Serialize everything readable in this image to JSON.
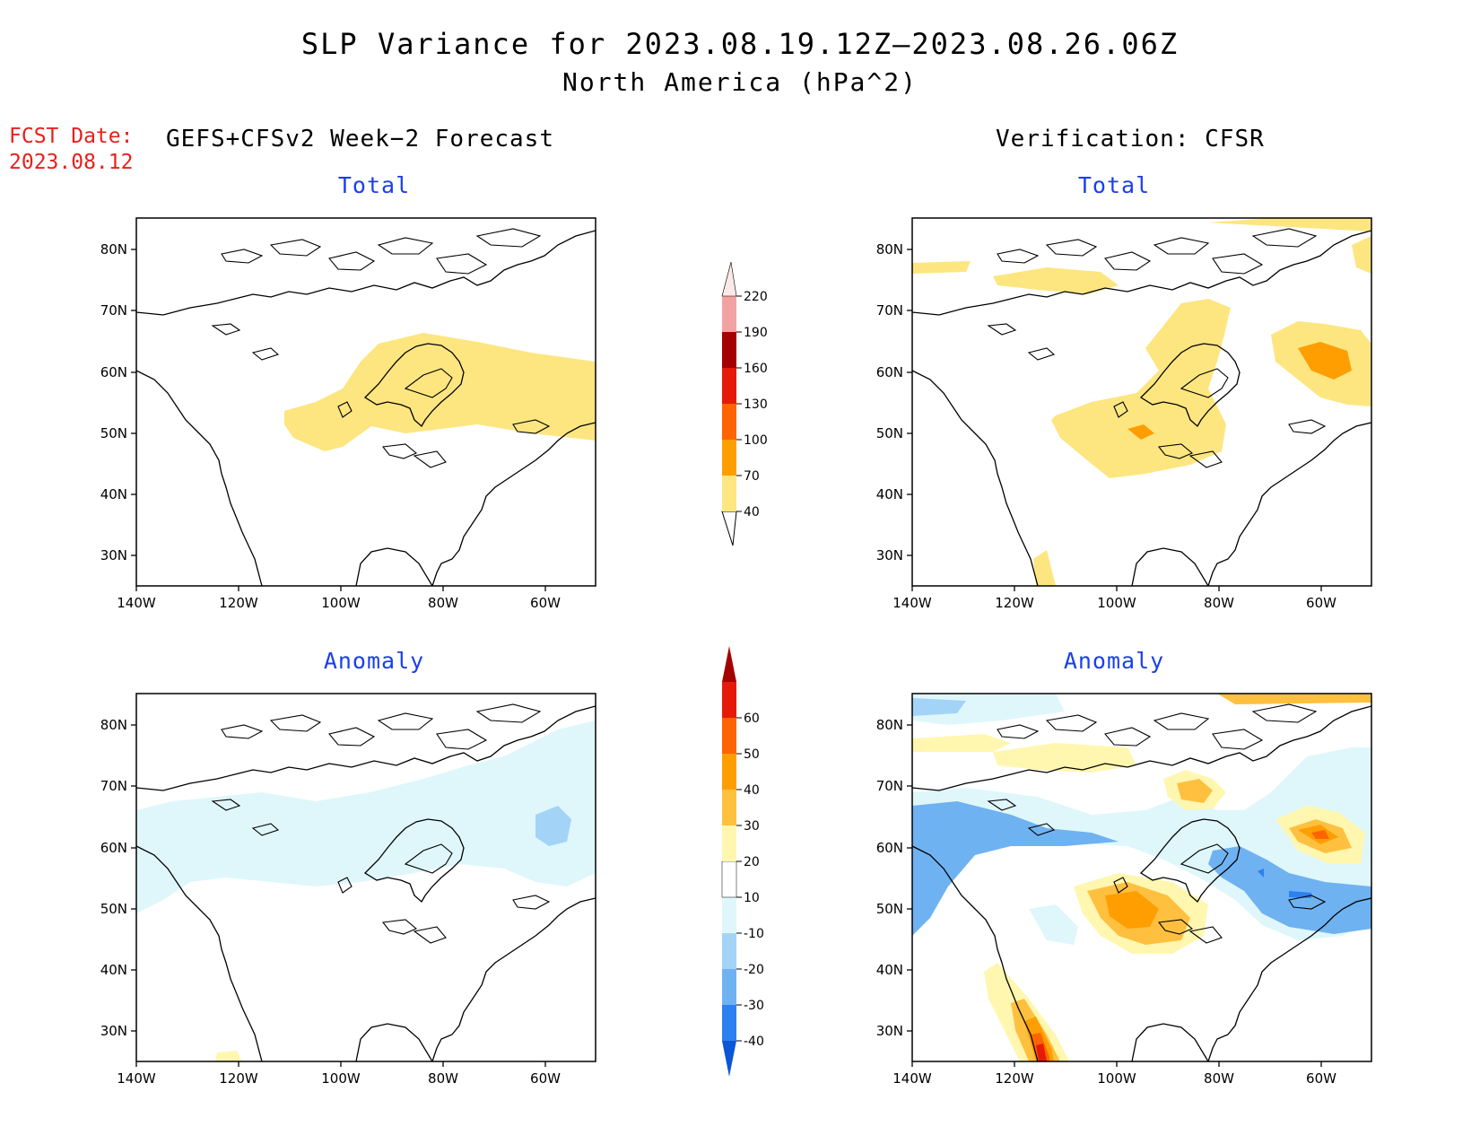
{
  "title": {
    "line1": "SLP Variance for 2023.08.19.12Z–2023.08.26.06Z",
    "line2": "North America (hPa^2)"
  },
  "fcst": {
    "label": "FCST Date:",
    "date": "2023.08.12"
  },
  "left_header": "GEFS+CFSv2 Week−2 Forecast",
  "right_header": "Verification: CFSR",
  "panels": {
    "fc_total": "Total",
    "ver_total": "Total",
    "fc_anom": "Anomaly",
    "ver_anom": "Anomaly"
  },
  "axes": {
    "lat_labels": [
      "80N",
      "70N",
      "60N",
      "50N",
      "40N",
      "30N"
    ],
    "lon_labels": [
      "140W",
      "120W",
      "100W",
      "80W",
      "60W"
    ]
  },
  "colorbars": {
    "total": {
      "levels": [
        "40",
        "70",
        "100",
        "130",
        "160",
        "190",
        "220"
      ],
      "colors": [
        "#fde680",
        "#ff9e00",
        "#ff6400",
        "#e61a0a",
        "#a50000",
        "#f2a2a2",
        "#fde8e8"
      ]
    },
    "anomaly": {
      "levels": [
        "-40",
        "-30",
        "-20",
        "-10",
        "10",
        "20",
        "30",
        "40",
        "50",
        "60"
      ],
      "colors": [
        "#0a56d8",
        "#2c80f0",
        "#6fb2f2",
        "#a3d4f7",
        "#dff7fb",
        "#ffffff",
        "#fff7b0",
        "#ffc040",
        "#ff9e00",
        "#ff6400",
        "#e61a0a",
        "#a50000"
      ]
    }
  },
  "colors": {
    "title_blue": "#1a3ff0",
    "fcst_red": "#e8201c"
  }
}
